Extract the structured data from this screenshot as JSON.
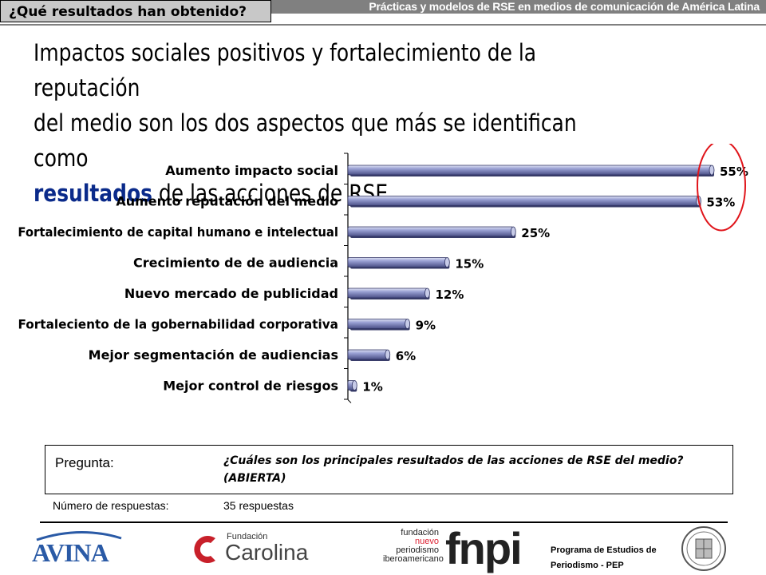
{
  "header": {
    "section_tab": "¿Qué resultados han obtenido?",
    "right_title": "Prácticas y modelos de RSE en medios de comunicación de América Latina"
  },
  "headline": {
    "line1": "Impactos sociales positivos y fortalecimiento de la reputación",
    "line2": "del medio son los dos aspectos que más se identifican como",
    "highlight": "resultados",
    "line3_rest": " de las acciones de RSE."
  },
  "chart_data": {
    "type": "bar",
    "orientation": "horizontal",
    "categories": [
      "Aumento impacto social",
      "Aumento reputación del medio",
      "Fortalecimiento de capital humano e intelectual",
      "Crecimiento de de audiencia",
      "Nuevo mercado de publicidad",
      "Fortaleciento de la gobernabilidad corporativa",
      "Mejor segmentación de audiencias",
      "Mejor control de riesgos"
    ],
    "values": [
      55,
      53,
      25,
      15,
      12,
      9,
      6,
      1
    ],
    "data_labels": [
      "55%",
      "53%",
      "25%",
      "15%",
      "12%",
      "9%",
      "6%",
      "1%"
    ],
    "xlim": [
      0,
      55
    ],
    "grid": false,
    "highlight": {
      "type": "ellipse",
      "color": "#e0151b",
      "items": [
        0,
        1
      ]
    },
    "bar_color": "#8c93c9"
  },
  "question": {
    "label": "Pregunta:",
    "text": "¿Cuáles son los principales resultados de las acciones de RSE del medio? (ABIERTA)"
  },
  "responses": {
    "label": "Número de respuestas:",
    "value": "35 respuestas"
  },
  "footer": {
    "logo_avina": "AVINA",
    "logo_carolina_small": "Fundación",
    "logo_carolina": "Carolina",
    "fnpi_line1": "fundación",
    "fnpi_line2": "nuevo",
    "fnpi_line3": "periodismo",
    "fnpi_line4": "iberoamericano",
    "fnpi_big": "fnpi",
    "pep_line1": "Programa de Estudios de",
    "pep_line2": "Periodismo - PEP"
  },
  "colors": {
    "header_gray": "#808080",
    "tab_gray": "#c8c8c8",
    "accent_blue": "#0a2a8a"
  }
}
